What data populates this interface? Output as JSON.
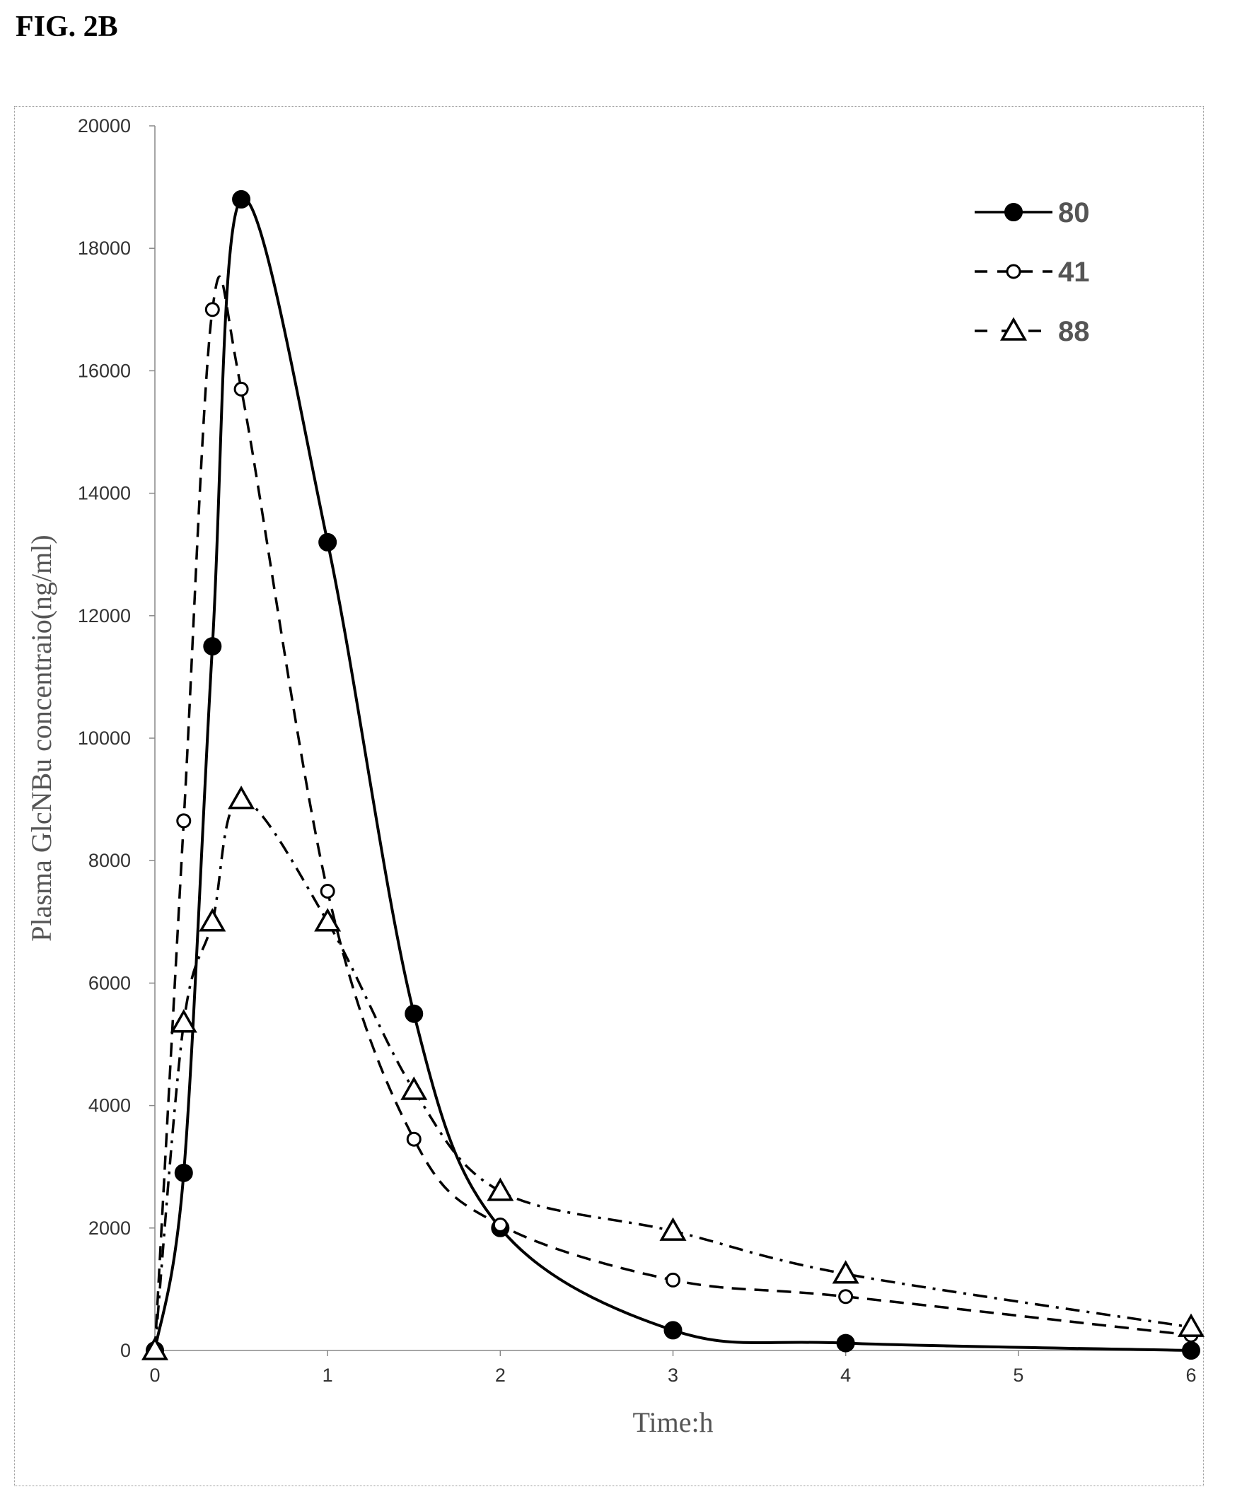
{
  "figure_label": "FIG. 2B",
  "chart_data": {
    "type": "line",
    "title": "",
    "xlabel": "Time:h",
    "ylabel": "Plasma GlcNBu concentraio(ng/ml)",
    "xlim": [
      0,
      6
    ],
    "ylim": [
      0,
      20000
    ],
    "x_ticks": [
      0,
      1,
      2,
      3,
      4,
      5,
      6
    ],
    "y_ticks": [
      0,
      2000,
      4000,
      6000,
      8000,
      10000,
      12000,
      14000,
      16000,
      18000,
      20000
    ],
    "grid": false,
    "legend_position": "top-right",
    "series": [
      {
        "name": "80",
        "marker": "filled-circle",
        "line_style": "solid",
        "color": "#000000",
        "x": [
          0,
          0.167,
          0.333,
          0.5,
          1,
          1.5,
          2,
          3,
          4,
          6
        ],
        "y": [
          0,
          2900,
          11500,
          18800,
          13200,
          5500,
          2000,
          330,
          120,
          0
        ]
      },
      {
        "name": "41",
        "marker": "open-circle",
        "line_style": "dashed",
        "color": "#000000",
        "x": [
          0,
          0.167,
          0.333,
          0.5,
          1,
          1.5,
          2,
          3,
          4,
          6
        ],
        "y": [
          0,
          8650,
          17000,
          15700,
          7500,
          3450,
          2050,
          1150,
          880,
          250
        ]
      },
      {
        "name": "88",
        "marker": "open-triangle",
        "line_style": "dash-dot",
        "color": "#000000",
        "x": [
          0,
          0.167,
          0.333,
          0.5,
          1,
          1.5,
          2,
          3,
          4,
          6
        ],
        "y": [
          0,
          5350,
          7000,
          9000,
          7000,
          4250,
          2600,
          1950,
          1250,
          380
        ]
      }
    ]
  }
}
